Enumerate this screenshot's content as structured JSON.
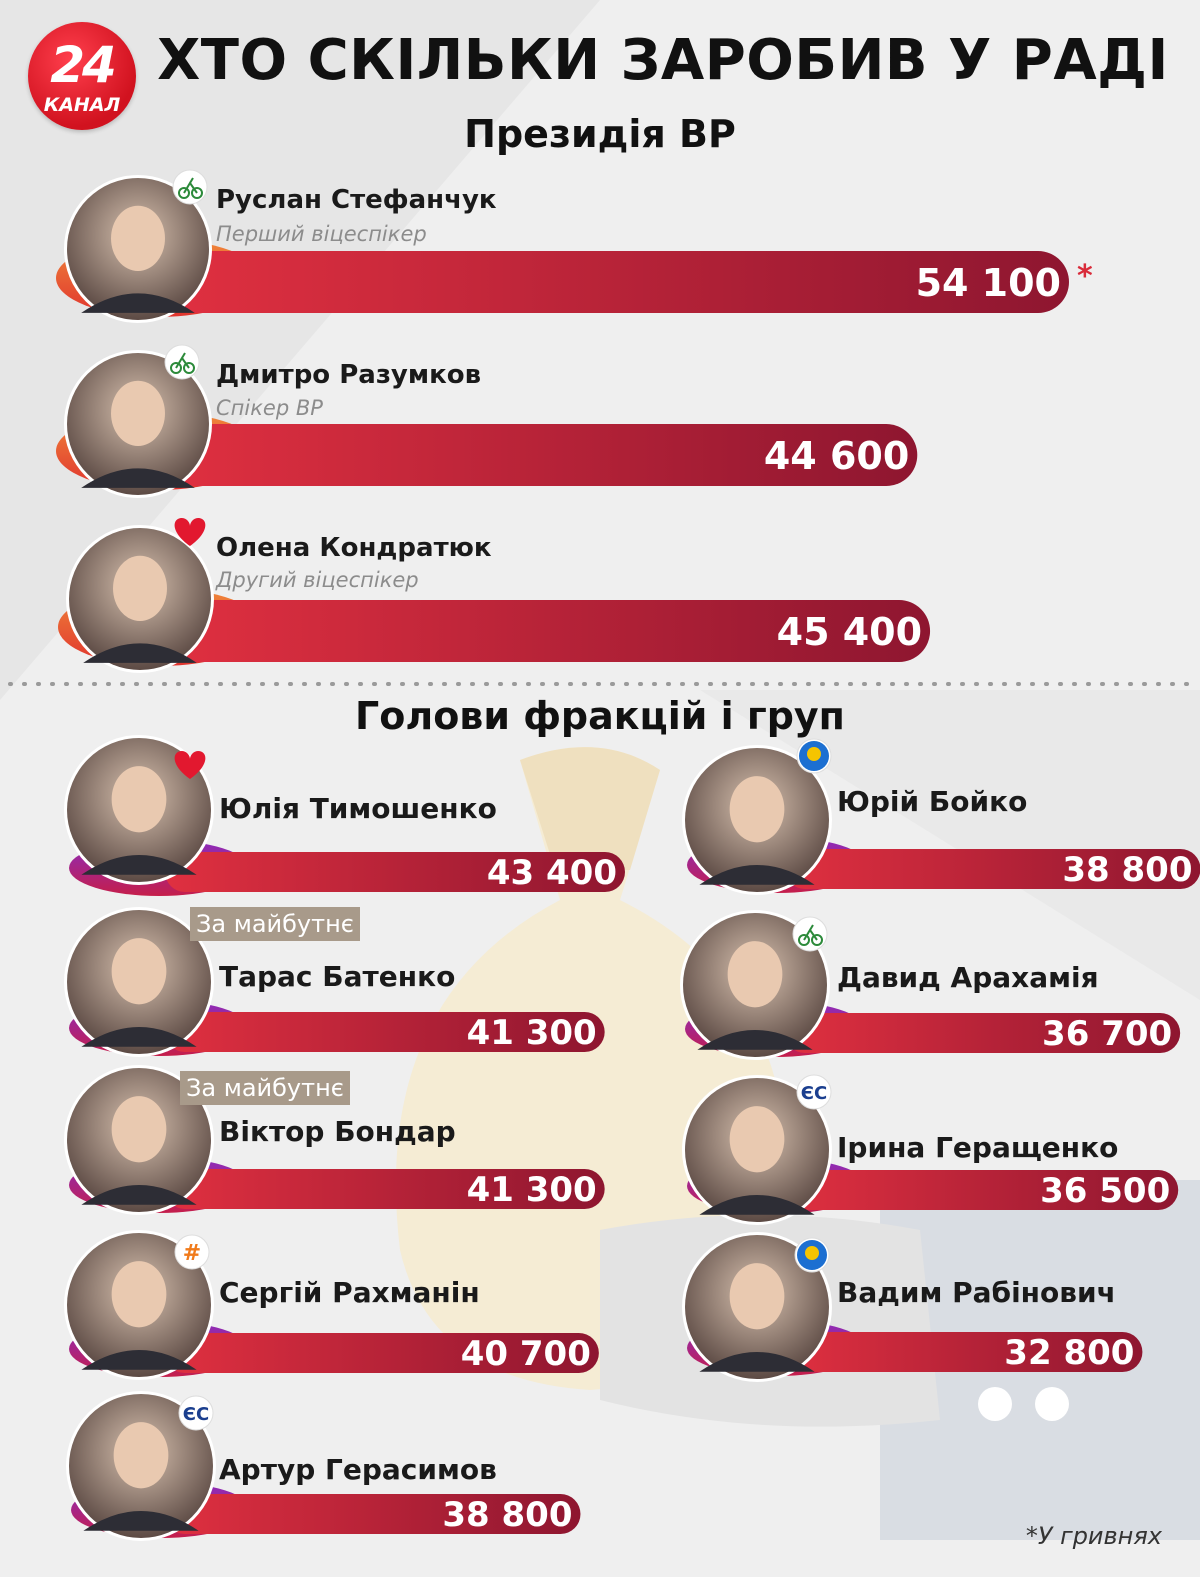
{
  "header": {
    "logo_number": "24",
    "logo_text": "КАНАЛ",
    "title": "ХТО СКІЛЬКИ ЗАРОБИВ У РАДІ"
  },
  "sections": [
    {
      "title": "Президія ВР"
    },
    {
      "title": "Голови фракцій і груп"
    }
  ],
  "footnote": "*У гривнях",
  "colors": {
    "presidium_bar": "#b01c35",
    "factions_bar": "#a61a3a",
    "presidium_accent": "#ef6a2b",
    "factions_accent": "#7b1fa2"
  },
  "chart_data": [
    {
      "type": "bar",
      "title": "Президія ВР",
      "unit": "гривні",
      "categories": [
        "Руслан Стефанчук",
        "Дмитро Разумков",
        "Олена Кондратюк"
      ],
      "values": [
        54100,
        44600,
        45400
      ],
      "value_labels": [
        "54 100",
        "44 600",
        "45 400"
      ],
      "roles": [
        "Перший віцеспікер",
        "Спікер ВР",
        "Другий віцеспікер"
      ],
      "party_icons": [
        "servant-of-the-people-icon",
        "servant-of-the-people-icon",
        "batkivshchyna-heart-icon"
      ],
      "annotations": [
        "*"
      ]
    },
    {
      "type": "bar",
      "title": "Голови фракцій і груп",
      "unit": "гривні",
      "categories": [
        "Юлія Тимошенко",
        "Тарас Батенко",
        "Віктор Бондар",
        "Сергій Рахманін",
        "Артур Герасимов",
        "Юрій Бойко",
        "Давид Арахамія",
        "Ірина Геращенко",
        "Вадим Рабінович"
      ],
      "values": [
        43400,
        41300,
        41300,
        40700,
        38800,
        38800,
        36700,
        36500,
        32800
      ],
      "value_labels": [
        "43 400",
        "41 300",
        "41 300",
        "40 700",
        "38 800",
        "38 800",
        "36 700",
        "36 500",
        "32 800"
      ],
      "party_labels": [
        "",
        "За майбутнє",
        "За майбутнє",
        "",
        "",
        "",
        "",
        "",
        ""
      ],
      "party_icons": [
        "batkivshchyna-heart-icon",
        "",
        "",
        "holos-icon",
        "european-solidarity-icon",
        "opzzh-icon",
        "servant-of-the-people-icon",
        "european-solidarity-icon",
        "opzzh-icon"
      ]
    }
  ]
}
